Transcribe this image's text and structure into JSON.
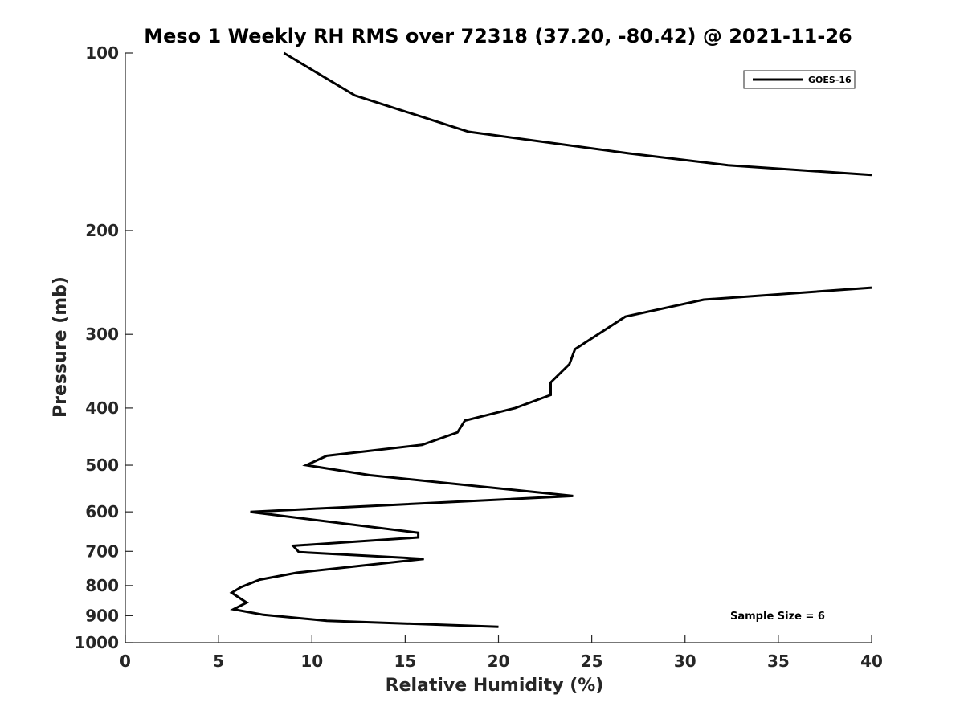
{
  "chart_data": {
    "type": "line",
    "title": "Meso 1 Weekly RH RMS over 72318 (37.20, -80.42) @ 2021-11-26",
    "xlabel": "Relative Humidity (%)",
    "ylabel": "Pressure (mb)",
    "xlim": [
      0,
      40
    ],
    "ylim": [
      100,
      1000
    ],
    "y_scale": "log",
    "y_reversed": true,
    "grid": false,
    "legend_position": "top-right",
    "x_ticks": [
      0,
      5,
      10,
      15,
      20,
      25,
      30,
      35,
      40
    ],
    "y_ticks": [
      100,
      200,
      300,
      400,
      500,
      600,
      700,
      800,
      900,
      1000
    ],
    "series": [
      {
        "name": "GOES-16",
        "color": "#000000",
        "segments": [
          [
            {
              "x": 8.5,
              "p": 100
            },
            {
              "x": 12.3,
              "p": 118
            },
            {
              "x": 18.4,
              "p": 136
            },
            {
              "x": 27.0,
              "p": 148
            },
            {
              "x": 32.3,
              "p": 155
            },
            {
              "x": 40.0,
              "p": 161
            }
          ],
          [
            {
              "x": 40.0,
              "p": 250
            },
            {
              "x": 31.0,
              "p": 262
            },
            {
              "x": 26.8,
              "p": 280
            },
            {
              "x": 24.1,
              "p": 318
            },
            {
              "x": 23.8,
              "p": 337
            },
            {
              "x": 22.8,
              "p": 362
            },
            {
              "x": 22.8,
              "p": 380
            },
            {
              "x": 20.9,
              "p": 400
            },
            {
              "x": 18.2,
              "p": 420
            },
            {
              "x": 17.8,
              "p": 440
            },
            {
              "x": 15.9,
              "p": 462
            },
            {
              "x": 10.8,
              "p": 482
            },
            {
              "x": 9.7,
              "p": 500
            },
            {
              "x": 13.1,
              "p": 520
            },
            {
              "x": 24.0,
              "p": 564
            },
            {
              "x": 13.8,
              "p": 585
            },
            {
              "x": 6.7,
              "p": 600
            },
            {
              "x": 15.7,
              "p": 651
            },
            {
              "x": 15.7,
              "p": 663
            },
            {
              "x": 9.0,
              "p": 685
            },
            {
              "x": 9.3,
              "p": 702
            },
            {
              "x": 16.0,
              "p": 721
            },
            {
              "x": 9.2,
              "p": 761
            },
            {
              "x": 7.2,
              "p": 782
            },
            {
              "x": 6.2,
              "p": 805
            },
            {
              "x": 5.7,
              "p": 823
            },
            {
              "x": 6.5,
              "p": 855
            },
            {
              "x": 5.8,
              "p": 878
            },
            {
              "x": 7.4,
              "p": 897
            },
            {
              "x": 10.8,
              "p": 918
            },
            {
              "x": 20.0,
              "p": 940
            }
          ]
        ]
      }
    ],
    "annotation": "Sample Size = 6"
  }
}
